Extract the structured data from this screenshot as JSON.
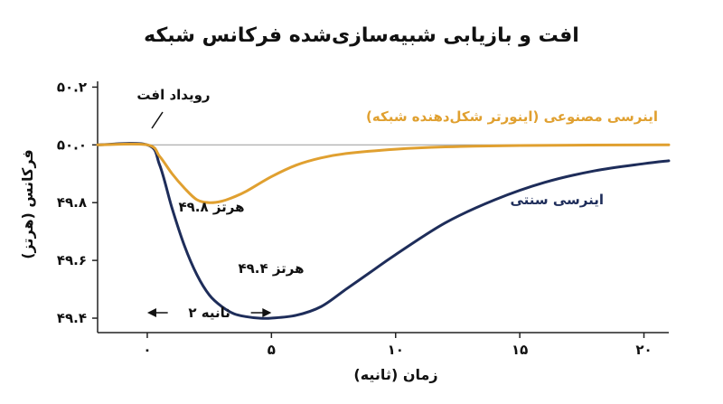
{
  "chart_data": {
    "type": "line",
    "title": "افت و بازیابی شبیه‌سازی‌شده فرکانس شبکه",
    "xlabel": "زمان (ثانیه)",
    "ylabel": "فرکانس (هرتز)",
    "xlim": [
      -2,
      21
    ],
    "ylim": [
      49.35,
      50.22
    ],
    "x_ticks": [
      0,
      5,
      10,
      15,
      20
    ],
    "x_tick_labels": [
      "۰",
      "۵",
      "۱۰",
      "۱۵",
      "۲۰"
    ],
    "y_ticks": [
      49.4,
      49.6,
      49.8,
      50.0,
      50.2
    ],
    "y_tick_labels": [
      "۴۹.۴",
      "۴۹.۶",
      "۴۹.۸",
      "۵۰.۰",
      "۵۰.۲"
    ],
    "grid": false,
    "reference_line": 50.0,
    "series": [
      {
        "name": "اینرسی مصنوعی (اینورتر شکل‌دهنده شبکه)",
        "color": "#e0a030",
        "x": [
          -2,
          0,
          0.5,
          1,
          1.5,
          2,
          2.5,
          3,
          3.5,
          4,
          5,
          6,
          7,
          8,
          10,
          12,
          15,
          21
        ],
        "y": [
          50.0,
          50.0,
          49.96,
          49.9,
          49.85,
          49.81,
          49.8,
          49.805,
          49.82,
          49.84,
          49.89,
          49.93,
          49.955,
          49.97,
          49.985,
          49.993,
          49.998,
          50.0
        ]
      },
      {
        "name": "اینرسی سنتی",
        "color": "#1e2d5a",
        "x": [
          -2,
          0,
          0.5,
          1,
          1.5,
          2,
          2.5,
          3,
          3.5,
          4,
          4.5,
          5,
          6,
          7,
          8,
          9,
          10,
          12,
          14,
          16,
          18,
          20,
          21
        ],
        "y": [
          50.0,
          50.0,
          49.93,
          49.78,
          49.65,
          49.55,
          49.48,
          49.44,
          49.415,
          49.405,
          49.4,
          49.4,
          49.41,
          49.44,
          49.5,
          49.56,
          49.62,
          49.73,
          49.81,
          49.87,
          49.91,
          49.935,
          49.945
        ]
      }
    ],
    "annotations": {
      "event": "رویداد افت",
      "synthetic_min": "۴۹.۸ هرتز",
      "traditional_min": "۴۹.۴ هرتز",
      "duration": "۲ ثانیه",
      "synthetic_label": "اینرسی مصنوعی (اینورتر شکل‌دهنده شبکه)",
      "traditional_label": "اینرسی سنتی"
    },
    "duration_range": [
      0,
      5
    ]
  }
}
